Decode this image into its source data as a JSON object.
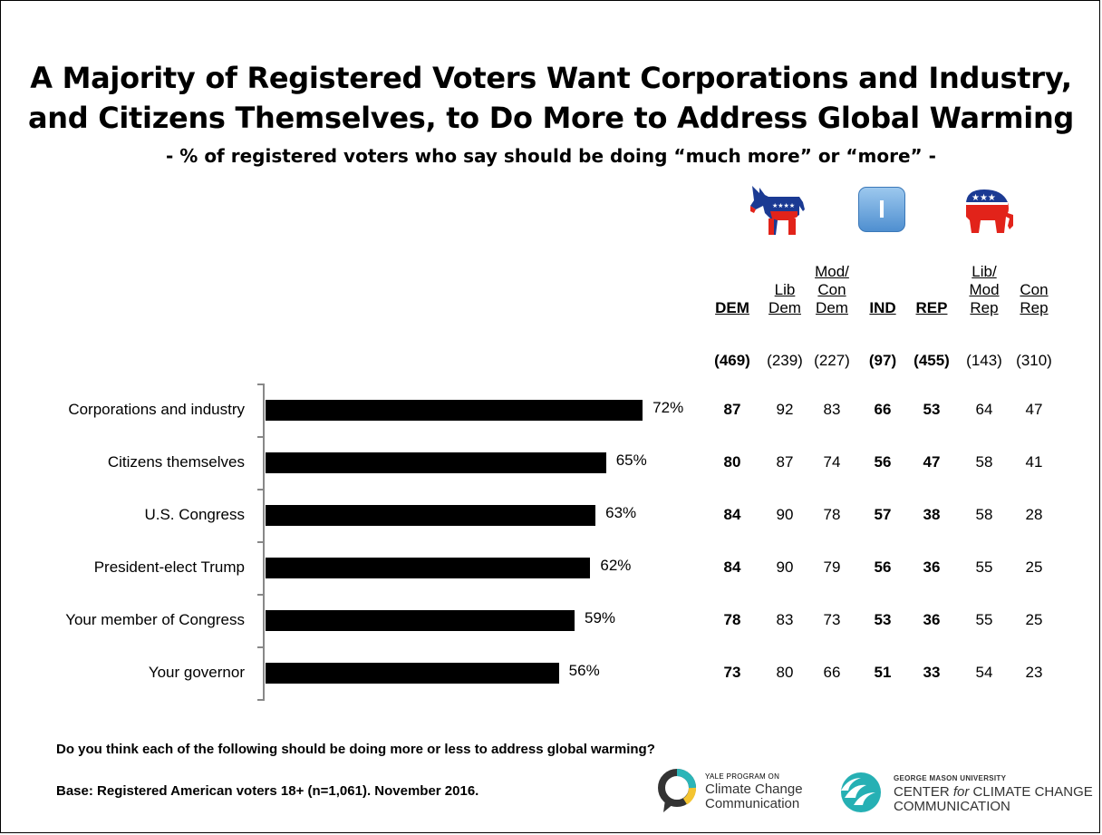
{
  "title_line1": "A Majority of Registered Voters Want Corporations and Industry,",
  "title_line2": "and Citizens Themselves, to Do More to Address Global Warming",
  "subtitle": "- % of registered voters who say should be doing “much more” or “more” -",
  "independent_badge": "I",
  "columns": [
    {
      "key": "dem",
      "label": "DEM",
      "n": "(469)",
      "bold": true
    },
    {
      "key": "libdem",
      "label": "Lib\nDem",
      "n": "(239)",
      "bold": false
    },
    {
      "key": "modcondem",
      "label": "Mod/\nCon\nDem",
      "n": "(227)",
      "bold": false
    },
    {
      "key": "ind",
      "label": "IND",
      "n": "(97)",
      "bold": true
    },
    {
      "key": "rep",
      "label": "REP",
      "n": "(455)",
      "bold": true
    },
    {
      "key": "libmodrep",
      "label": "Lib/\nMod\nRep",
      "n": "(143)",
      "bold": false
    },
    {
      "key": "conrep",
      "label": "Con\nRep",
      "n": "(310)",
      "bold": false
    }
  ],
  "chart_data": {
    "type": "bar",
    "orientation": "horizontal",
    "categories": [
      "Corporations and industry",
      "Citizens themselves",
      "U.S. Congress",
      "President-elect Trump",
      "Your member of Congress",
      "Your governor"
    ],
    "values": [
      72,
      65,
      63,
      62,
      59,
      56
    ],
    "value_labels": [
      "72%",
      "65%",
      "63%",
      "62%",
      "59%",
      "56%"
    ],
    "xlim": [
      0,
      100
    ],
    "grid": false,
    "title": "A Majority of Registered Voters Want Corporations and Industry, and Citizens Themselves, to Do More to Address Global Warming"
  },
  "table_rows": [
    [
      "87",
      "92",
      "83",
      "66",
      "53",
      "64",
      "47"
    ],
    [
      "80",
      "87",
      "74",
      "56",
      "47",
      "58",
      "41"
    ],
    [
      "84",
      "90",
      "78",
      "57",
      "38",
      "58",
      "28"
    ],
    [
      "84",
      "90",
      "79",
      "56",
      "36",
      "55",
      "25"
    ],
    [
      "78",
      "83",
      "73",
      "53",
      "36",
      "55",
      "25"
    ],
    [
      "73",
      "80",
      "66",
      "51",
      "33",
      "54",
      "23"
    ]
  ],
  "question": "Do you think each of the following should be doing more or less to address global warming?",
  "base": "Base: Registered American voters 18+ (n=1,061). November 2016.",
  "logo1": {
    "small": "YALE PROGRAM ON",
    "line1": "Climate Change",
    "line2": "Communication"
  },
  "logo2": {
    "small": "GEORGE MASON UNIVERSITY",
    "line1a": "CENTER ",
    "line1b": "for",
    "line1c": " CLIMATE CHANGE",
    "line2": "COMMUNICATION"
  },
  "colors": {
    "bar": "#000000",
    "dem_red": "#e2231a",
    "dem_blue": "#1b3a93",
    "rep_red": "#e2231a",
    "rep_blue": "#1b3a93",
    "ind_blue": "#5b9bd5",
    "yale_teal": "#2bb5b8",
    "gmu_teal": "#26b0b4"
  }
}
